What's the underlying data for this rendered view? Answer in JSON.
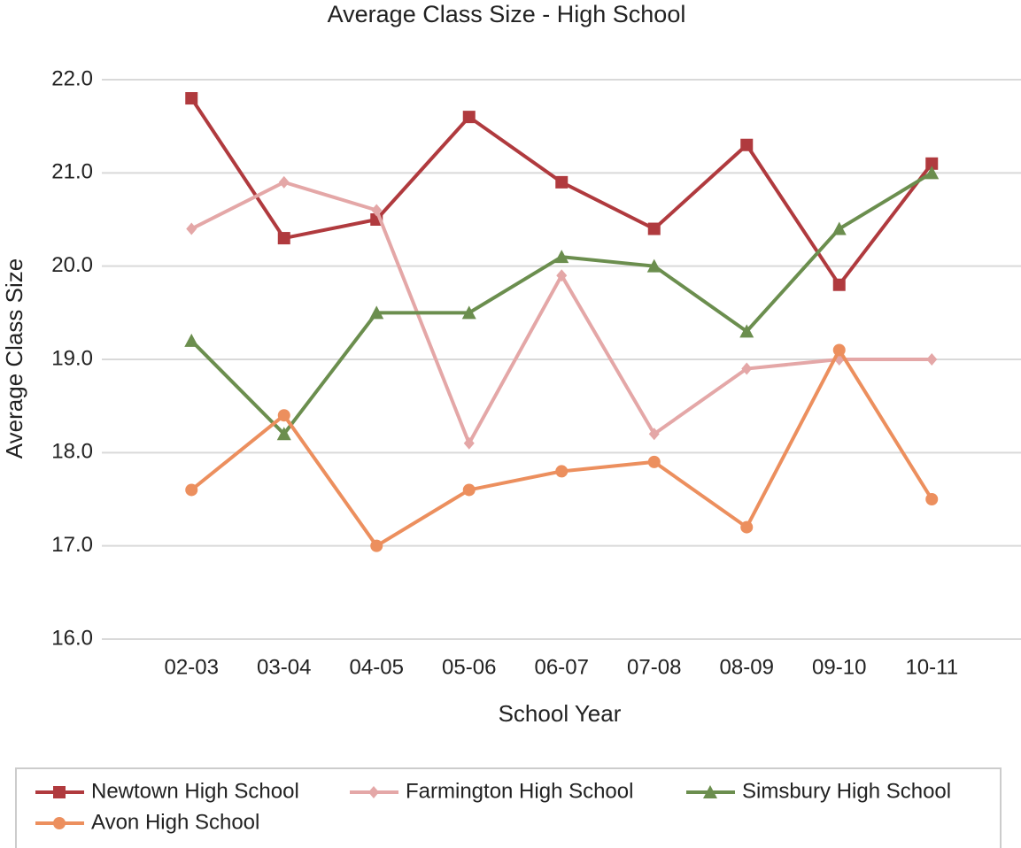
{
  "chart_data": {
    "type": "line",
    "title": "Average Class Size - High School",
    "xlabel": "School Year",
    "ylabel": "Average Class Size",
    "categories": [
      "02-03",
      "03-04",
      "04-05",
      "05-06",
      "06-07",
      "07-08",
      "08-09",
      "09-10",
      "10-11"
    ],
    "series": [
      {
        "name": "Newtown High School",
        "color": "#b03a3e",
        "marker": "square",
        "values": [
          21.8,
          20.3,
          20.5,
          21.6,
          20.9,
          20.4,
          21.3,
          19.8,
          21.1
        ]
      },
      {
        "name": "Farmington High School",
        "color": "#e4a7a7",
        "marker": "diamond",
        "values": [
          20.4,
          20.9,
          20.6,
          18.1,
          19.9,
          18.2,
          18.9,
          19.0,
          19.0
        ]
      },
      {
        "name": "Simsbury High School",
        "color": "#6b8e4e",
        "marker": "triangle",
        "values": [
          19.2,
          18.2,
          19.5,
          19.5,
          20.1,
          20.0,
          19.3,
          20.4,
          21.0
        ]
      },
      {
        "name": "Avon High School",
        "color": "#ec8f5e",
        "marker": "circle",
        "values": [
          17.6,
          18.4,
          17.0,
          17.6,
          17.8,
          17.9,
          17.2,
          19.1,
          17.5
        ]
      }
    ],
    "ylim": [
      16,
      22
    ],
    "yticks": [
      {
        "value": 16,
        "label": "16.0"
      },
      {
        "value": 17,
        "label": "17.0"
      },
      {
        "value": 18,
        "label": "18.0"
      },
      {
        "value": 19,
        "label": "19.0"
      },
      {
        "value": 20,
        "label": "20.0"
      },
      {
        "value": 21,
        "label": "21.0"
      },
      {
        "value": 22,
        "label": "22.0"
      }
    ],
    "grid": true,
    "legend": "bottom"
  }
}
